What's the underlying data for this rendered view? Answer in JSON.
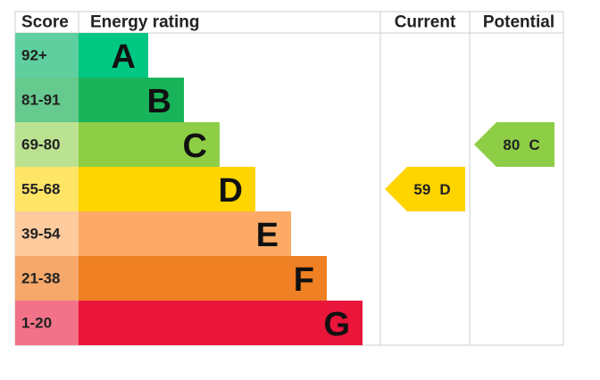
{
  "header": {
    "score": "Score",
    "rating": "Energy rating",
    "current": "Current",
    "potential": "Potential"
  },
  "bands": [
    {
      "score": "92+",
      "letter": "A",
      "color": "#00c781",
      "score_color": "#5fcf9f"
    },
    {
      "score": "81-91",
      "letter": "B",
      "color": "#19b459",
      "score_color": "#66c98e"
    },
    {
      "score": "69-80",
      "letter": "C",
      "color": "#8dce46",
      "score_color": "#bbe291"
    },
    {
      "score": "55-68",
      "letter": "D",
      "color": "#ffd500",
      "score_color": "#ffe566"
    },
    {
      "score": "39-54",
      "letter": "E",
      "color": "#fcaa65",
      "score_color": "#fdcb9e"
    },
    {
      "score": "21-38",
      "letter": "F",
      "color": "#ef8023",
      "score_color": "#f5a86a"
    },
    {
      "score": "1-20",
      "letter": "G",
      "color": "#e9153b",
      "score_color": "#f27389"
    }
  ],
  "current": {
    "value": 59,
    "letter": "D"
  },
  "potential": {
    "value": 80,
    "letter": "C"
  }
}
